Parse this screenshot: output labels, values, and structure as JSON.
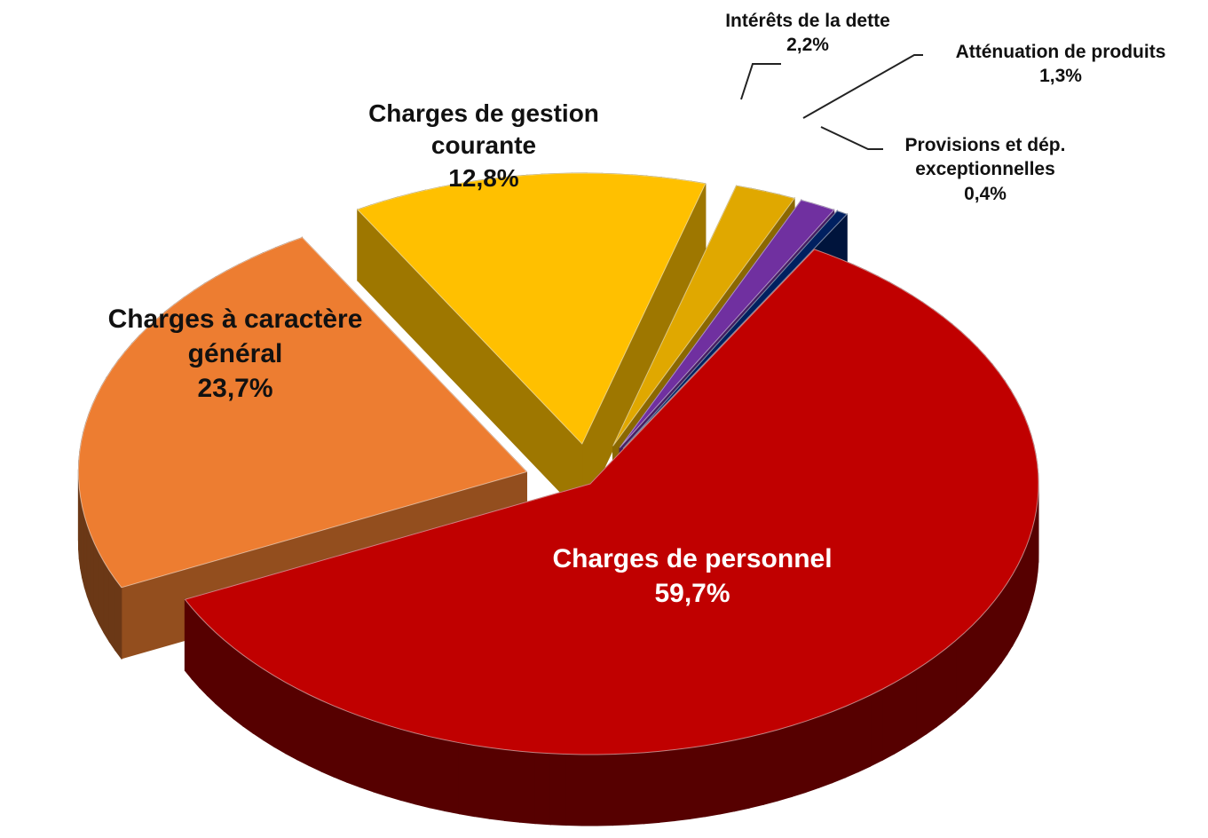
{
  "chart_data": {
    "type": "pie",
    "categories": [
      "Charges de personnel",
      "Charges à caractère général",
      "Charges de gestion courante",
      "Intérêts de la dette",
      "Atténuation de produits",
      "Provisions et dép. exceptionnelles"
    ],
    "values": [
      59.7,
      23.7,
      12.8,
      2.2,
      1.3,
      0.4
    ],
    "value_labels": [
      "59,7%",
      "23,7%",
      "12,8%",
      "2,2%",
      "1,3%",
      "0,4%"
    ],
    "colors": [
      "#c00000",
      "#ed7d31",
      "#ffc000",
      "#e0a800",
      "#7030a0",
      "#002060"
    ]
  }
}
